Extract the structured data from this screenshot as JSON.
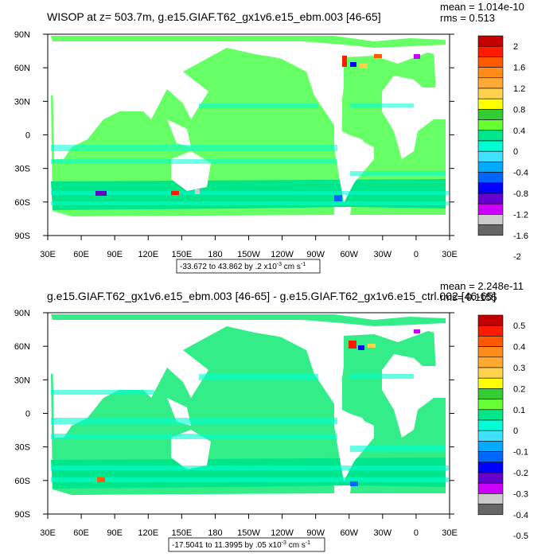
{
  "chart_data": [
    {
      "type": "heatmap",
      "title": "WISOP at z= 503.7m, g.e15.GIAF.T62_gx1v6.e15_ebm.003 [46-65]",
      "stats": {
        "mean": "mean = 1.014e-10",
        "rms": "rms = 0.513"
      },
      "range_text": "-33.672 to 43.862 by .2 x10",
      "range_exp": "-3",
      "range_units_pre": " cm s",
      "range_units_exp": "-1",
      "x_ticks": [
        "30E",
        "60E",
        "90E",
        "120E",
        "150E",
        "180",
        "150W",
        "120W",
        "90W",
        "60W",
        "30W",
        "0",
        "30E"
      ],
      "y_ticks": [
        "90N",
        "60N",
        "30N",
        "0",
        "30S",
        "60S",
        "90S"
      ],
      "colorbar_labels": [
        "2",
        "1.6",
        "1.2",
        "0.8",
        "0.4",
        "0",
        "-0.4",
        "-0.8",
        "-1.2",
        "-1.6",
        "-2"
      ],
      "colorbar_colors": [
        "#c40000",
        "#ff1a00",
        "#ff5a00",
        "#ff8c1a",
        "#ffaa33",
        "#ffd24d",
        "#ffff00",
        "#33cc33",
        "#66ff33",
        "#00e68a",
        "#00ffd5",
        "#40e0ff",
        "#00aaff",
        "#0066ff",
        "#0000ff",
        "#6600cc",
        "#cc00ff",
        "#cccccc",
        "#666666"
      ],
      "ocean_color": "#66ff66"
    },
    {
      "type": "heatmap",
      "title": "g.e15.GIAF.T62_gx1v6.e15_ebm.003 [46-65] - g.e15.GIAF.T62_gx1v6.e15_ctrl.002 [46-65]",
      "stats": {
        "mean": "mean = 2.248e-11",
        "rms": "rms= 0.1155"
      },
      "range_text": "-17.5041 to 11.3995 by .05 x10",
      "range_exp": "-3",
      "range_units_pre": " cm s",
      "range_units_exp": "-1",
      "x_ticks": [
        "30E",
        "60E",
        "90E",
        "120E",
        "150E",
        "180",
        "150W",
        "120W",
        "90W",
        "60W",
        "30W",
        "0",
        "30E"
      ],
      "y_ticks": [
        "90N",
        "60N",
        "30N",
        "0",
        "30S",
        "60S",
        "90S"
      ],
      "colorbar_labels": [
        "0.5",
        "0.4",
        "0.3",
        "0.2",
        "0.1",
        "0",
        "-0.1",
        "-0.2",
        "-0.3",
        "-0.4",
        "-0.5"
      ],
      "colorbar_colors": [
        "#c40000",
        "#ff1a00",
        "#ff5a00",
        "#ff8c1a",
        "#ffaa33",
        "#ffd24d",
        "#ffff00",
        "#33cc33",
        "#66ff33",
        "#00e68a",
        "#00ffd5",
        "#40e0ff",
        "#00aaff",
        "#0066ff",
        "#0000ff",
        "#6600cc",
        "#cc00ff",
        "#cccccc",
        "#666666"
      ],
      "ocean_color": "#33ee88"
    }
  ]
}
